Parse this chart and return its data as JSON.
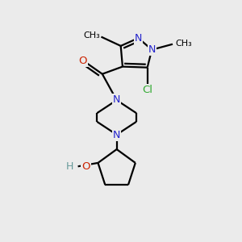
{
  "background_color": "#EBEBEB",
  "bond_color": "#000000",
  "N_color": "#2222CC",
  "O_color": "#CC2200",
  "Cl_color": "#33AA33",
  "H_color": "#669999",
  "bond_width": 1.6,
  "figsize": [
    3.0,
    3.0
  ],
  "dpi": 100,
  "xlim": [
    0,
    10
  ],
  "ylim": [
    0,
    10
  ]
}
